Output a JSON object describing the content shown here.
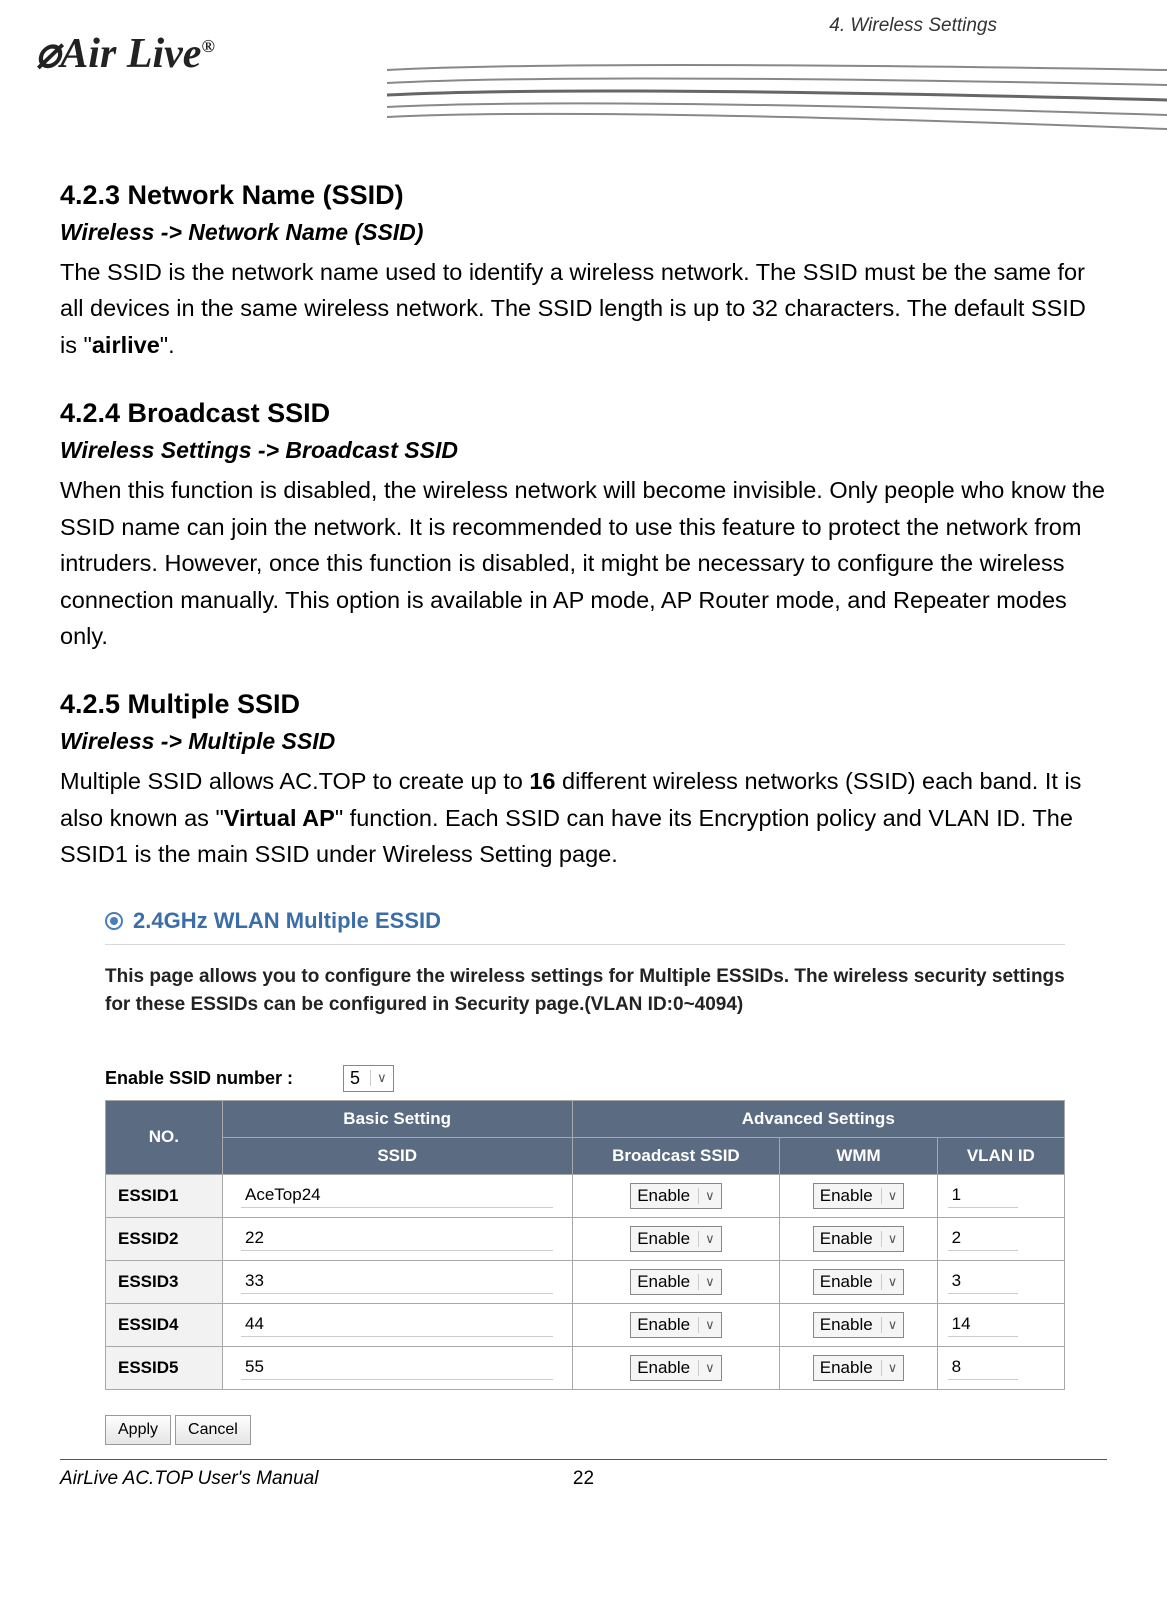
{
  "header": {
    "chapter": "4. Wireless Settings",
    "logo_text": "Air Live"
  },
  "sections": {
    "s1": {
      "heading": "4.2.3 Network Name (SSID)",
      "breadcrumb": "Wireless -> Network Name (SSID)",
      "body_pre": "The SSID is the network name used to identify a wireless network. The SSID must be the same for all devices in the same wireless network. The SSID length is up to 32 characters. The default SSID is \"",
      "body_bold": "airlive",
      "body_post": "\"."
    },
    "s2": {
      "heading": "4.2.4 Broadcast SSID",
      "breadcrumb": "Wireless Settings -> Broadcast SSID",
      "body": "When this function is disabled, the wireless network will become invisible. Only people who know the SSID name can join the network. It is recommended to use this feature to protect the network from intruders. However, once this function is disabled, it might be necessary to configure the wireless connection manually. This option is available in AP mode, AP Router mode, and Repeater modes only."
    },
    "s3": {
      "heading": "4.2.5 Multiple SSID",
      "breadcrumb": "Wireless -> Multiple SSID",
      "body_pre": "Multiple SSID allows AC.TOP to create up to ",
      "body_bold1": "16",
      "body_mid": " different wireless networks (SSID) each band. It is also known as \"",
      "body_bold2": "Virtual AP",
      "body_post": "\" function. Each SSID can have its Encryption policy and VLAN ID. The SSID1 is the main SSID under Wireless Setting page."
    }
  },
  "panel": {
    "title": "2.4GHz WLAN Multiple ESSID",
    "description": "This page allows you to configure the wireless settings for Multiple ESSIDs. The wireless security settings for these ESSIDs can be configured in Security page.(VLAN ID:0~4094)",
    "enable_label": "Enable SSID number :",
    "enable_value": "5",
    "table": {
      "header_no": "NO.",
      "header_basic": "Basic Setting",
      "header_advanced": "Advanced Settings",
      "header_ssid": "SSID",
      "header_broadcast": "Broadcast SSID",
      "header_wmm": "WMM",
      "header_vlan": "VLAN ID",
      "enable_option": "Enable",
      "rows": [
        {
          "label": "ESSID1",
          "ssid": "AceTop24",
          "broadcast": "Enable",
          "wmm": "Enable",
          "vlan": "1"
        },
        {
          "label": "ESSID2",
          "ssid": "22",
          "broadcast": "Enable",
          "wmm": "Enable",
          "vlan": "2"
        },
        {
          "label": "ESSID3",
          "ssid": "33",
          "broadcast": "Enable",
          "wmm": "Enable",
          "vlan": "3"
        },
        {
          "label": "ESSID4",
          "ssid": "44",
          "broadcast": "Enable",
          "wmm": "Enable",
          "vlan": "14"
        },
        {
          "label": "ESSID5",
          "ssid": "55",
          "broadcast": "Enable",
          "wmm": "Enable",
          "vlan": "8"
        }
      ]
    },
    "apply_button": "Apply",
    "cancel_button": "Cancel"
  },
  "footer": {
    "manual": "AirLive AC.TOP User's Manual",
    "page": "22"
  },
  "colors": {
    "heading_blue": "#3b6da8",
    "table_header_bg": "#5a6b82",
    "row_label_bg": "#f2f2f2"
  }
}
